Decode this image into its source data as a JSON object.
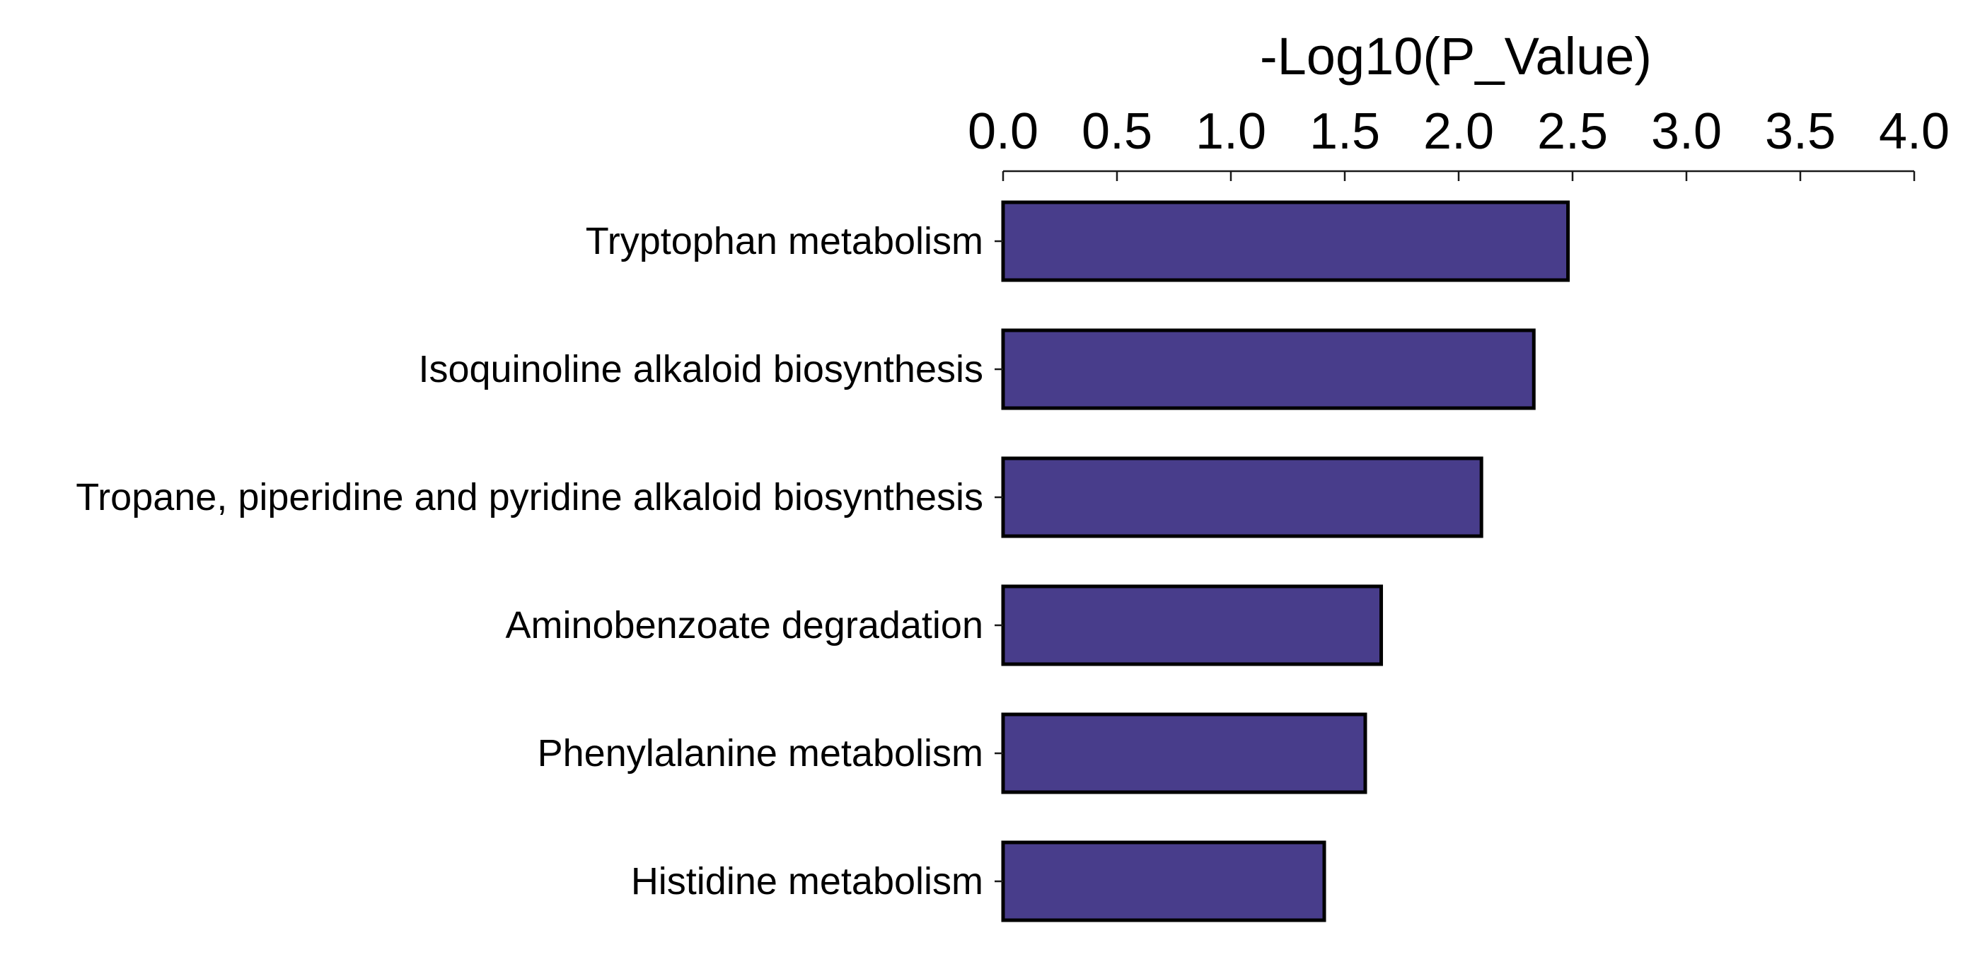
{
  "chart_data": {
    "type": "bar",
    "orientation": "horizontal",
    "xlabel": "-Log10(P_Value)",
    "ylabel": "",
    "title": "",
    "xlim": [
      0.0,
      4.0
    ],
    "x_ticks": [
      "0.0",
      "0.5",
      "1.0",
      "1.5",
      "2.0",
      "2.5",
      "3.0",
      "3.5",
      "4.0"
    ],
    "x_axis_position": "top",
    "grid": false,
    "legend": "none",
    "categories": [
      "Tryptophan metabolism",
      "Isoquinoline alkaloid biosynthesis",
      "Tropane, piperidine and pyridine alkaloid biosynthesis",
      "Aminobenzoate degradation",
      "Phenylalanine metabolism",
      "Histidine metabolism"
    ],
    "values": [
      2.48,
      2.33,
      2.1,
      1.66,
      1.59,
      1.41
    ],
    "colors": {
      "bar_fill": "#483D8B",
      "bar_edge": "#000000",
      "text": "#000000"
    }
  }
}
